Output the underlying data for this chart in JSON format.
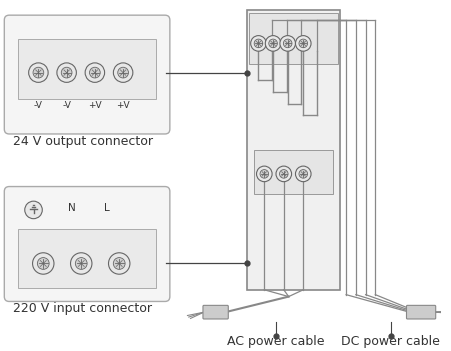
{
  "bg_color": "#ffffff",
  "line_color": "#444444",
  "wire_color": "#888888",
  "connector_24v_label": "24 V output connector",
  "connector_220v_label": "220 V input connector",
  "ac_cable_label": "AC power cable",
  "dc_cable_label": "DC power cable",
  "terminal_labels_24v": [
    "-V",
    "-V",
    "+V",
    "+V"
  ],
  "font_size": 9
}
